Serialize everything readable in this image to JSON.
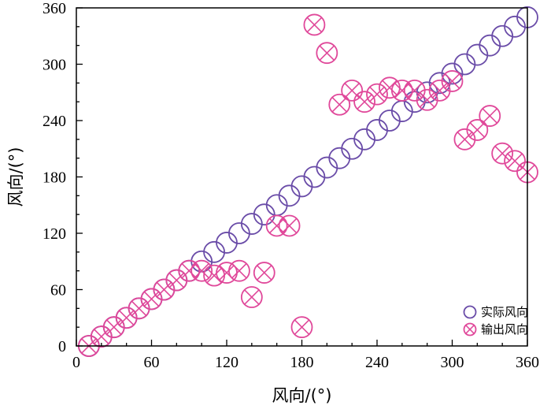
{
  "chart_data": {
    "type": "scatter",
    "xlabel": "风向/(°)",
    "ylabel": "风向/(°)",
    "xlim": [
      0,
      360
    ],
    "ylim": [
      0,
      360
    ],
    "xticks": [
      0,
      60,
      120,
      180,
      240,
      300,
      360
    ],
    "yticks": [
      0,
      60,
      120,
      180,
      240,
      300,
      360
    ],
    "grid": false,
    "legend_position": "bottom-right",
    "series": [
      {
        "name": "实际风向",
        "marker": "circle",
        "color": "#6a4ca8",
        "points": [
          [
            10,
            0
          ],
          [
            20,
            10
          ],
          [
            30,
            20
          ],
          [
            40,
            30
          ],
          [
            50,
            40
          ],
          [
            60,
            50
          ],
          [
            70,
            60
          ],
          [
            80,
            70
          ],
          [
            90,
            80
          ],
          [
            100,
            90
          ],
          [
            110,
            100
          ],
          [
            120,
            110
          ],
          [
            130,
            120
          ],
          [
            140,
            130
          ],
          [
            150,
            140
          ],
          [
            160,
            150
          ],
          [
            170,
            160
          ],
          [
            180,
            170
          ],
          [
            190,
            180
          ],
          [
            200,
            190
          ],
          [
            210,
            200
          ],
          [
            220,
            210
          ],
          [
            230,
            220
          ],
          [
            240,
            230
          ],
          [
            250,
            240
          ],
          [
            260,
            250
          ],
          [
            270,
            260
          ],
          [
            280,
            270
          ],
          [
            290,
            280
          ],
          [
            300,
            290
          ],
          [
            310,
            300
          ],
          [
            320,
            310
          ],
          [
            330,
            320
          ],
          [
            340,
            330
          ],
          [
            350,
            340
          ],
          [
            360,
            350
          ]
        ]
      },
      {
        "name": "输出风向",
        "marker": "circle-x",
        "color": "#e0489a",
        "points": [
          [
            10,
            0
          ],
          [
            20,
            10
          ],
          [
            30,
            20
          ],
          [
            40,
            30
          ],
          [
            50,
            40
          ],
          [
            60,
            50
          ],
          [
            70,
            60
          ],
          [
            80,
            70
          ],
          [
            90,
            80
          ],
          [
            100,
            80
          ],
          [
            110,
            75
          ],
          [
            120,
            78
          ],
          [
            130,
            80
          ],
          [
            140,
            52
          ],
          [
            150,
            78
          ],
          [
            160,
            128
          ],
          [
            170,
            128
          ],
          [
            180,
            20
          ],
          [
            190,
            342
          ],
          [
            200,
            312
          ],
          [
            210,
            257
          ],
          [
            220,
            272
          ],
          [
            230,
            260
          ],
          [
            240,
            268
          ],
          [
            250,
            275
          ],
          [
            260,
            272
          ],
          [
            270,
            272
          ],
          [
            280,
            262
          ],
          [
            290,
            272
          ],
          [
            300,
            282
          ],
          [
            310,
            220
          ],
          [
            320,
            230
          ],
          [
            330,
            245
          ],
          [
            340,
            205
          ],
          [
            350,
            197
          ],
          [
            360,
            185
          ]
        ]
      }
    ]
  }
}
